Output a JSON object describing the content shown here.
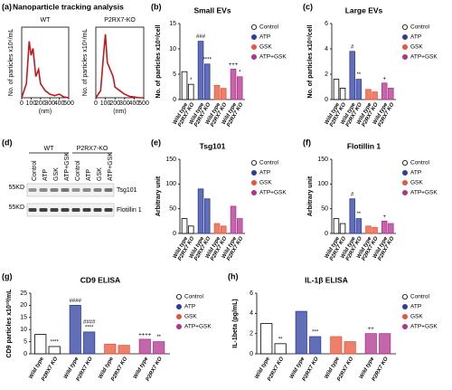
{
  "chart_data": [
    {
      "type": "line",
      "label": "(a)",
      "title": "Nanoparticle tracking analysis",
      "subtitle": "WT",
      "x_label": "(nm)",
      "y_label": "No. of particles x10⁶/mL",
      "color": "#c0191c",
      "x": [
        0,
        50,
        80,
        100,
        120,
        150,
        180,
        200,
        250,
        300,
        350,
        400,
        450,
        500
      ],
      "values": [
        0,
        2,
        8,
        6,
        7,
        3,
        4,
        2,
        1,
        0.5,
        0.3,
        0.5,
        0.1,
        0
      ],
      "xlim": [
        0,
        500
      ],
      "xticks": [
        0,
        100,
        200,
        300,
        400,
        500
      ],
      "ylim": [
        0,
        10
      ]
    },
    {
      "type": "line",
      "subtitle": "P2RX7-KO",
      "x_label": "(nm)",
      "y_label": "No. of particles x10⁶/mL",
      "color": "#c0191c",
      "x": [
        0,
        50,
        80,
        100,
        120,
        150,
        180,
        200,
        250,
        300,
        350,
        400,
        450,
        500
      ],
      "values": [
        0,
        1,
        6,
        9,
        5,
        4,
        3,
        1.5,
        1,
        0.5,
        0.2,
        0.1,
        0,
        0
      ],
      "xlim": [
        0,
        500
      ],
      "xticks": [
        0,
        100,
        200,
        300,
        400,
        500
      ],
      "ylim": [
        0,
        10
      ]
    },
    {
      "type": "bar",
      "label": "(b)",
      "title": "Small EVs",
      "y_label": "No. of particles x10⁹/cell",
      "categories": [
        "Wild type",
        "P2RX7 KO"
      ],
      "ylim": [
        0,
        15
      ],
      "yticks": [
        0,
        5,
        10,
        15
      ],
      "series": [
        {
          "name": "Control",
          "color": "#ffffff",
          "values": [
            5.5,
            3
          ],
          "annotations": [
            null,
            "*"
          ]
        },
        {
          "name": "ATP",
          "color": "#2e3d9c",
          "values": [
            11.5,
            7
          ],
          "annotations": [
            "###",
            "****"
          ]
        },
        {
          "name": "GSK",
          "color": "#e8553a",
          "values": [
            2.8,
            2.2
          ],
          "annotations": [
            null,
            null
          ]
        },
        {
          "name": "ATP+GSK",
          "color": "#b0338c",
          "values": [
            6,
            4.5
          ],
          "annotations": [
            "+++",
            "*"
          ]
        }
      ]
    },
    {
      "type": "bar",
      "label": "(c)",
      "title": "Large EVs",
      "y_label": "No. of particles x10⁹/cell",
      "categories": [
        "Wild type",
        "P2RX7 KO"
      ],
      "ylim": [
        0,
        6
      ],
      "yticks": [
        0,
        2,
        4,
        6
      ],
      "series": [
        {
          "name": "Control",
          "color": "#ffffff",
          "values": [
            1.6,
            0.9
          ],
          "annotations": [
            null,
            null
          ]
        },
        {
          "name": "ATP",
          "color": "#2e3d9c",
          "values": [
            3.8,
            1.6
          ],
          "annotations": [
            "#",
            "**"
          ]
        },
        {
          "name": "GSK",
          "color": "#e8553a",
          "values": [
            0.8,
            0.6
          ],
          "annotations": [
            null,
            null
          ]
        },
        {
          "name": "ATP+GSK",
          "color": "#b0338c",
          "values": [
            1.3,
            0.9
          ],
          "annotations": [
            "+",
            null
          ]
        }
      ]
    },
    {
      "type": "bar",
      "label": "(e)",
      "title": "Tsg101",
      "y_label": "Arbitrary unit",
      "categories": [
        "Wild type",
        "P2RX7 KO"
      ],
      "ylim": [
        0,
        150
      ],
      "yticks": [
        0,
        50,
        100,
        150
      ],
      "series": [
        {
          "name": "Control",
          "color": "#ffffff",
          "values": [
            30,
            15
          ],
          "annotations": [
            null,
            null
          ]
        },
        {
          "name": "ATP",
          "color": "#2e3d9c",
          "values": [
            90,
            70
          ],
          "annotations": [
            null,
            null
          ]
        },
        {
          "name": "GSK",
          "color": "#e8553a",
          "values": [
            20,
            15
          ],
          "annotations": [
            null,
            null
          ]
        },
        {
          "name": "ATP+GSK",
          "color": "#b0338c",
          "values": [
            55,
            30
          ],
          "annotations": [
            null,
            null
          ]
        }
      ]
    },
    {
      "type": "bar",
      "label": "(f)",
      "title": "Flotillin 1",
      "y_label": "Arbitrary unit",
      "categories": [
        "Wild type",
        "P2RX7 KO"
      ],
      "ylim": [
        0,
        150
      ],
      "yticks": [
        0,
        50,
        100,
        150
      ],
      "series": [
        {
          "name": "Control",
          "color": "#ffffff",
          "values": [
            30,
            20
          ],
          "annotations": [
            null,
            null
          ]
        },
        {
          "name": "ATP",
          "color": "#2e3d9c",
          "values": [
            70,
            30
          ],
          "annotations": [
            "#",
            "**"
          ]
        },
        {
          "name": "GSK",
          "color": "#e8553a",
          "values": [
            15,
            12
          ],
          "annotations": [
            null,
            null
          ]
        },
        {
          "name": "ATP+GSK",
          "color": "#b0338c",
          "values": [
            25,
            20
          ],
          "annotations": [
            "+",
            null
          ]
        }
      ]
    },
    {
      "type": "bar",
      "label": "(g)",
      "title": "CD9 ELISA",
      "y_label": "CD9 particles x10¹⁰/mL",
      "categories": [
        "Wild type",
        "P2RX7 KO"
      ],
      "ylim": [
        0,
        25
      ],
      "yticks": [
        0,
        5,
        10,
        15,
        20,
        25
      ],
      "series": [
        {
          "name": "Control",
          "color": "#ffffff",
          "values": [
            8,
            3
          ],
          "annotations": [
            null,
            "****"
          ]
        },
        {
          "name": "ATP",
          "color": "#2e3d9c",
          "values": [
            20,
            9
          ],
          "annotations": [
            "####",
            [
              "####",
              "****"
            ]
          ]
        },
        {
          "name": "GSK",
          "color": "#e8553a",
          "values": [
            4,
            3.5
          ],
          "annotations": [
            null,
            null
          ]
        },
        {
          "name": "ATP+GSK",
          "color": "#b0338c",
          "values": [
            6,
            5
          ],
          "annotations": [
            "++++",
            "**"
          ]
        }
      ]
    },
    {
      "type": "bar",
      "label": "(h)",
      "title": "IL-1β ELISA",
      "y_label": "IL-1beta (pg/mL)",
      "categories": [
        "Wild type",
        "P2RX7 KO"
      ],
      "ylim": [
        0,
        6
      ],
      "yticks": [
        0,
        2,
        4,
        6
      ],
      "series": [
        {
          "name": "Control",
          "color": "#ffffff",
          "values": [
            3,
            1
          ],
          "annotations": [
            null,
            "**"
          ]
        },
        {
          "name": "ATP",
          "color": "#2e3d9c",
          "values": [
            4.2,
            1.7
          ],
          "annotations": [
            null,
            "***"
          ]
        },
        {
          "name": "GSK",
          "color": "#e8553a",
          "values": [
            1.7,
            1.2
          ],
          "annotations": [
            null,
            null
          ]
        },
        {
          "name": "ATP+GSK",
          "color": "#b0338c",
          "values": [
            2,
            2
          ],
          "annotations": [
            "++",
            null
          ]
        }
      ]
    }
  ],
  "blot": {
    "label": "(d)",
    "groups": [
      "WT",
      "P2RX7-KO"
    ],
    "lanes": [
      "Control",
      "ATP",
      "GSK",
      "ATP+GSK",
      "Control",
      "ATP",
      "GSK",
      "ATP+GSK"
    ],
    "rows": [
      {
        "marker": "55KD",
        "protein": "Tsg101"
      },
      {
        "marker": "55KD",
        "protein": "Flotillin 1"
      }
    ]
  }
}
